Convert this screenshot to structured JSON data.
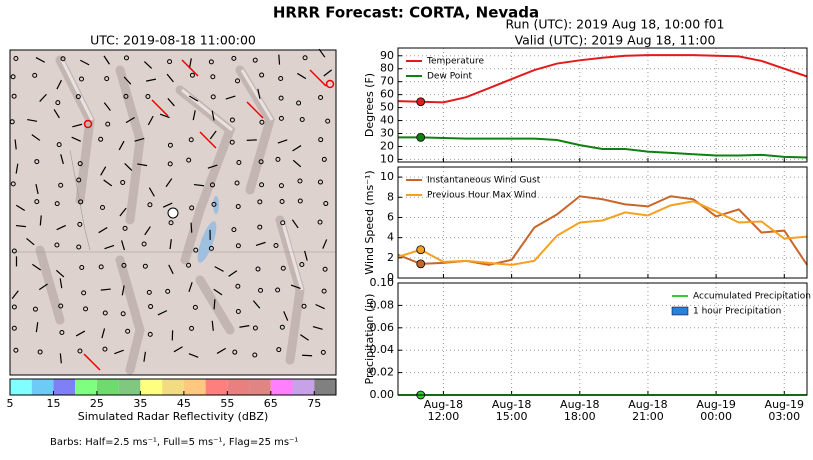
{
  "title": "HRRR Forecast: CORTA, Nevada",
  "run": "Run (UTC): 2019 Aug 18, 10:00 f01",
  "valid": "Valid (UTC): 2019 Aug 18, 11:00",
  "map": {
    "title": "UTC: 2019-08-18 11:00:00",
    "colorbar": {
      "label": "Simulated Radar Reflectivity (dBZ)",
      "bounds": [
        5,
        10,
        15,
        20,
        25,
        30,
        35,
        40,
        45,
        50,
        55,
        60,
        65,
        70,
        75,
        80
      ],
      "colors": [
        "#7fffff",
        "#6ecbf5",
        "#7f7ff7",
        "#7fff7f",
        "#6edb6e",
        "#80c880",
        "#ffff7f",
        "#f2dc82",
        "#ffc87f",
        "#ff7f7f",
        "#ea7f7f",
        "#e08484",
        "#ff7fff",
        "#c8a2e6",
        "#808080"
      ],
      "ticks": [
        5,
        15,
        25,
        35,
        45,
        55,
        65,
        75
      ]
    },
    "note": "Barbs: Half=2.5 ms⁻¹, Full=5 ms⁻¹, Flag=25 ms⁻¹"
  },
  "chart_data": [
    {
      "type": "line",
      "ylabel": "Degrees (F)",
      "legend": "upper left",
      "x": [
        "Aug-18 10:00",
        "Aug-18 11:00",
        "Aug-18 12:00",
        "Aug-18 13:00",
        "Aug-18 14:00",
        "Aug-18 15:00",
        "Aug-18 16:00",
        "Aug-18 17:00",
        "Aug-18 18:00",
        "Aug-18 19:00",
        "Aug-18 20:00",
        "Aug-18 21:00",
        "Aug-18 22:00",
        "Aug-18 23:00",
        "Aug-19 00:00",
        "Aug-19 01:00",
        "Aug-19 02:00",
        "Aug-19 03:00",
        "Aug-19 04:00"
      ],
      "xlim": [
        "Aug-18 10:00",
        "Aug-19 04:00"
      ],
      "xticks": [
        "Aug-18 12:00",
        "Aug-18 15:00",
        "Aug-18 18:00",
        "Aug-18 21:00",
        "Aug-19 00:00",
        "Aug-19 03:00"
      ],
      "ylim": [
        8,
        96
      ],
      "yticks": [
        10,
        20,
        30,
        40,
        50,
        60,
        70,
        80,
        90
      ],
      "grid": true,
      "series": [
        {
          "name": "Temperature",
          "color": "#e31a1c",
          "values": [
            55,
            54.5,
            54,
            58,
            65,
            72,
            79,
            84,
            86.5,
            88.5,
            90,
            90.5,
            90.5,
            90.5,
            90,
            89.5,
            86,
            80,
            74
          ]
        },
        {
          "name": "Dew Point",
          "color": "#108010",
          "values": [
            27,
            27,
            26.5,
            26,
            26,
            26,
            26,
            25,
            21,
            18,
            18,
            16,
            15,
            14,
            13,
            13,
            13.5,
            12,
            11.5
          ]
        }
      ]
    },
    {
      "type": "line",
      "ylabel": "Wind Speed (ms⁻¹)",
      "legend": "upper left",
      "x": [
        "Aug-18 10:00",
        "Aug-18 11:00",
        "Aug-18 12:00",
        "Aug-18 13:00",
        "Aug-18 14:00",
        "Aug-18 15:00",
        "Aug-18 16:00",
        "Aug-18 17:00",
        "Aug-18 18:00",
        "Aug-18 19:00",
        "Aug-18 20:00",
        "Aug-18 21:00",
        "Aug-18 22:00",
        "Aug-18 23:00",
        "Aug-19 00:00",
        "Aug-19 01:00",
        "Aug-19 02:00",
        "Aug-19 03:00",
        "Aug-19 04:00"
      ],
      "xlim": [
        "Aug-18 10:00",
        "Aug-19 04:00"
      ],
      "xticks": [
        "Aug-18 12:00",
        "Aug-18 15:00",
        "Aug-18 18:00",
        "Aug-18 21:00",
        "Aug-19 00:00",
        "Aug-19 03:00"
      ],
      "ylim": [
        0,
        11
      ],
      "yticks": [
        0,
        2,
        4,
        6,
        8,
        10
      ],
      "grid": true,
      "series": [
        {
          "name": "Instantaneous Wind Gust",
          "color": "#c8662a",
          "values": [
            2.3,
            1.4,
            1.5,
            1.7,
            1.3,
            1.8,
            5,
            6.3,
            8.1,
            7.8,
            7.3,
            7.1,
            8.1,
            7.8,
            6.1,
            6.8,
            4.5,
            4.7,
            1.3
          ]
        },
        {
          "name": "Previous Hour Max Wind",
          "color": "#f5a01e",
          "values": [
            2.1,
            2.8,
            1.6,
            1.7,
            1.5,
            1.3,
            1.7,
            4.2,
            5.5,
            5.7,
            6.5,
            6.2,
            7.2,
            7.6,
            6.6,
            5.5,
            5.6,
            3.9,
            4.1
          ]
        }
      ]
    },
    {
      "type": "line",
      "ylabel": "Precipitation (in)",
      "legend": "upper right",
      "x": [
        "Aug-18 10:00",
        "Aug-18 11:00",
        "Aug-18 12:00",
        "Aug-18 13:00",
        "Aug-18 14:00",
        "Aug-18 15:00",
        "Aug-18 16:00",
        "Aug-18 17:00",
        "Aug-18 18:00",
        "Aug-18 19:00",
        "Aug-18 20:00",
        "Aug-18 21:00",
        "Aug-18 22:00",
        "Aug-18 23:00",
        "Aug-19 00:00",
        "Aug-19 01:00",
        "Aug-19 02:00",
        "Aug-19 03:00",
        "Aug-19 04:00"
      ],
      "xlim": [
        "Aug-18 10:00",
        "Aug-19 04:00"
      ],
      "xticks": [
        "Aug-18 12:00",
        "Aug-18 15:00",
        "Aug-18 18:00",
        "Aug-18 21:00",
        "Aug-19 00:00",
        "Aug-19 03:00"
      ],
      "ylim": [
        0,
        0.1
      ],
      "yticks": [
        {
          "value": 0,
          "label": "0.00"
        },
        {
          "value": 0.02,
          "label": "0.02"
        },
        {
          "value": 0.04,
          "label": "0.04"
        },
        {
          "value": 0.06,
          "label": "0.06"
        },
        {
          "value": 0.08,
          "label": "0.08"
        },
        {
          "value": 0.1,
          "label": "0.10"
        }
      ],
      "grid": true,
      "series": [
        {
          "name": "Accumulated Precipitation",
          "color": "#32cd32",
          "values": [
            0,
            0,
            0,
            0,
            0,
            0,
            0,
            0,
            0,
            0,
            0,
            0,
            0,
            0,
            0,
            0,
            0,
            0,
            0
          ]
        },
        {
          "name": "1 hour Precipitation",
          "color": "#2a80d8",
          "type": "bar",
          "values": [
            0,
            0,
            0,
            0,
            0,
            0,
            0,
            0,
            0,
            0,
            0,
            0,
            0,
            0,
            0,
            0,
            0,
            0,
            0
          ]
        }
      ]
    }
  ]
}
